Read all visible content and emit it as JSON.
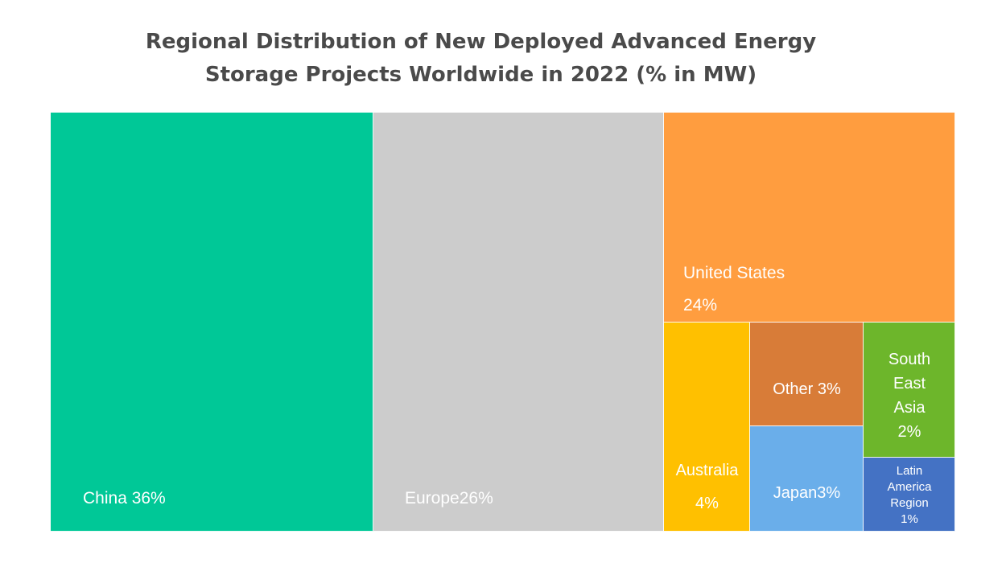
{
  "title": {
    "line1": "Regional Distribution of New Deployed Advanced Energy",
    "line2": "Storage Projects Worldwide in 2022 (% in MW)"
  },
  "chart_data": {
    "type": "treemap",
    "title": "Regional Distribution of New Deployed Advanced Energy Storage Projects Worldwide in 2022 (% in MW)",
    "unit": "% in MW",
    "items": [
      {
        "name": "China",
        "value": 36,
        "color": "#00c897",
        "label_lines": [
          "China 36%"
        ]
      },
      {
        "name": "Europe",
        "value": 26,
        "color": "#cccccc",
        "label_lines": [
          "Europe26%"
        ]
      },
      {
        "name": "United States",
        "value": 24,
        "color": "#ff9d3f",
        "label_lines": [
          "United States",
          "24%"
        ]
      },
      {
        "name": "Australia",
        "value": 4,
        "color": "#ffc000",
        "label_lines": [
          "Australia",
          "4%"
        ]
      },
      {
        "name": "Other",
        "value": 3,
        "color": "#d87c38",
        "label_lines": [
          "Other 3%"
        ]
      },
      {
        "name": "Japan",
        "value": 3,
        "color": "#6aaeea",
        "label_lines": [
          "Japan3%"
        ]
      },
      {
        "name": "South East Asia",
        "value": 2,
        "color": "#6db62b",
        "label_lines": [
          "South",
          "East",
          "Asia",
          "2%"
        ]
      },
      {
        "name": "Latin America Region",
        "value": 1,
        "color": "#4472c4",
        "label_lines": [
          "Latin",
          "America",
          "Region",
          "1%"
        ]
      }
    ]
  }
}
